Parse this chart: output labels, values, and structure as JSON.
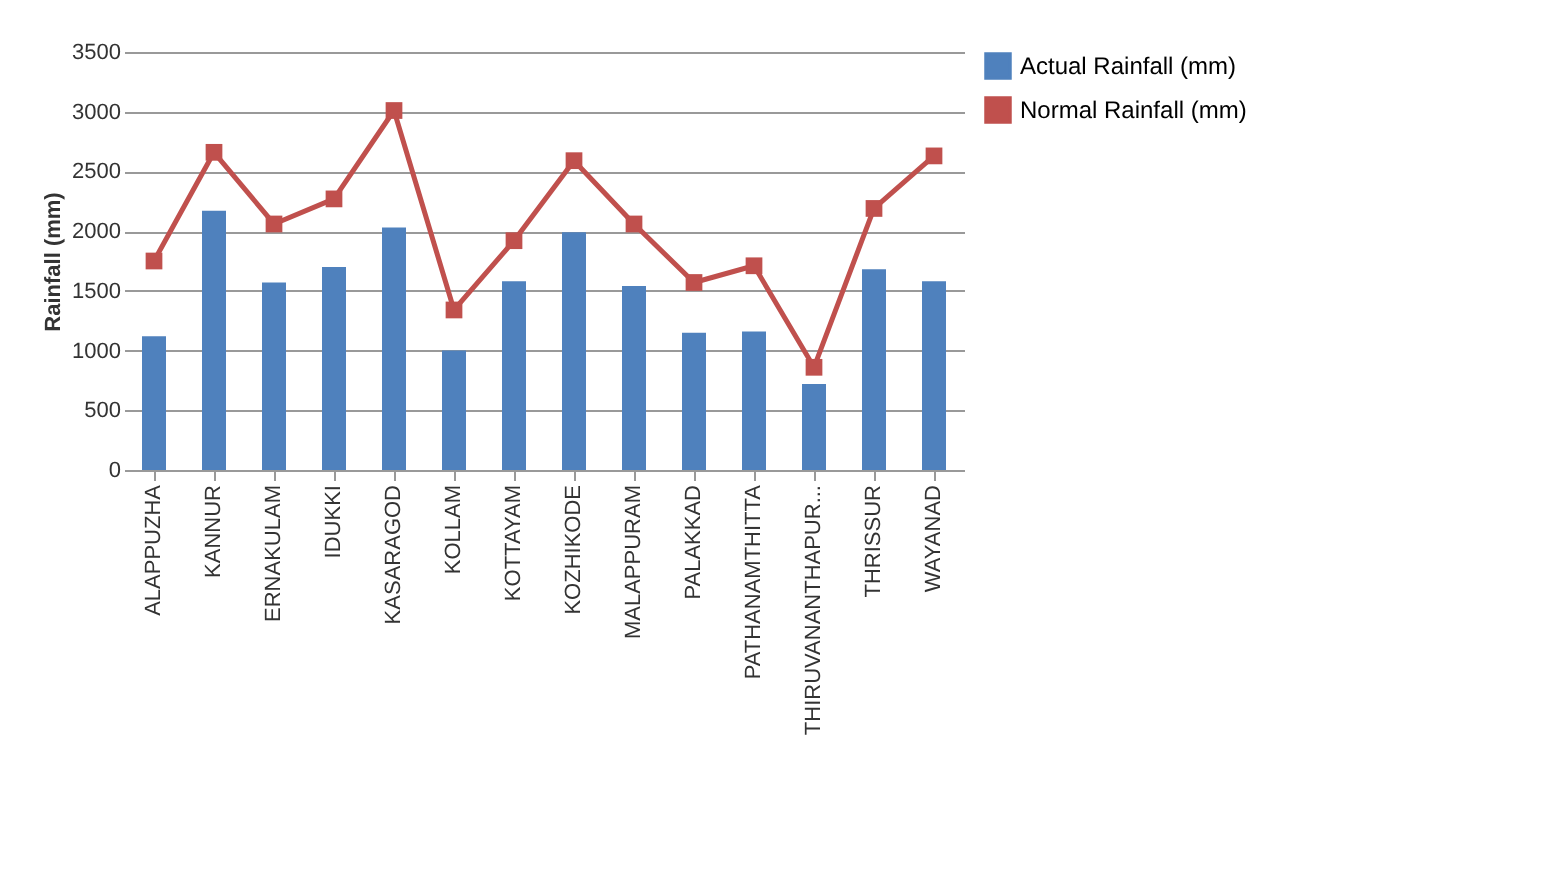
{
  "chart_data": {
    "type": "bar",
    "ylabel": "Rainfall (mm)",
    "categories": [
      "ALAPPUZHA",
      "KANNUR",
      "ERNAKULAM",
      "IDUKKI",
      "KASARAGOD",
      "KOLLAM",
      "KOTTAYAM",
      "KOZHIKODE",
      "MALAPPURAM",
      "PALAKKAD",
      "PATHANAMTHITTA",
      "THIRUVANANTHAPUR...",
      "THRISSUR",
      "WAYANAD"
    ],
    "series": [
      {
        "name": "Actual Rainfall (mm)",
        "color": "#4f81bd",
        "values": [
          1120,
          2170,
          1570,
          1700,
          2030,
          1000,
          1580,
          1990,
          1540,
          1150,
          1160,
          720,
          1680,
          1580
        ]
      },
      {
        "name": "Normal Rainfall (mm)",
        "type": "line",
        "color": "#c0504d",
        "marker": "square",
        "values": [
          1750,
          2660,
          2060,
          2270,
          3010,
          1340,
          1920,
          2590,
          2060,
          1570,
          1710,
          860,
          2190,
          2630
        ]
      }
    ],
    "ylim": [
      0,
      3500
    ],
    "yticks": [
      0,
      500,
      1000,
      1500,
      2000,
      2500,
      3000,
      3500
    ],
    "grid": "y",
    "legend": "right"
  }
}
